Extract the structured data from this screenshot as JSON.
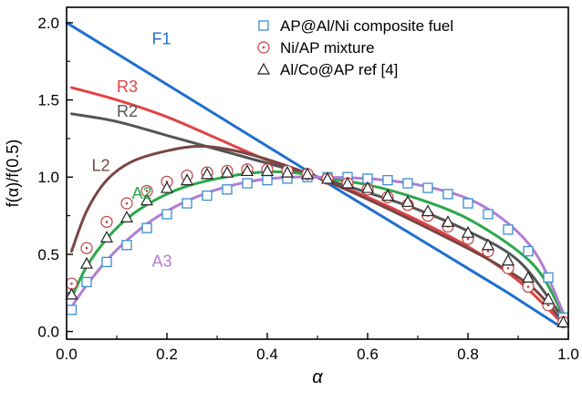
{
  "chart_data": {
    "type": "line",
    "xlabel": "α",
    "ylabel": "f(α)/f(0.5)",
    "xlim": [
      0,
      1
    ],
    "ylim": [
      -0.05,
      2.1
    ],
    "xticks": [
      "0.0",
      "0.2",
      "0.4",
      "0.6",
      "0.8",
      "1.0"
    ],
    "yticks": [
      "0.0",
      "0.5",
      "1.0",
      "1.5",
      "2.0"
    ],
    "grid": false,
    "legend_position": "top-right",
    "legend": [
      {
        "label": "AP@Al/Ni composite fuel",
        "marker": "square",
        "color": "#3a8fd0"
      },
      {
        "label": "Ni/AP mixture",
        "marker": "circle-dot",
        "color": "#c04040"
      },
      {
        "label": "Al/Co@AP ref [4]",
        "marker": "triangle",
        "color": "#222222"
      }
    ],
    "model_curves": [
      {
        "label": "F1",
        "color": "#1f6fd0",
        "label_x": 0.17,
        "label_y": 1.86,
        "points": [
          [
            0.0,
            2.0
          ],
          [
            0.5,
            1.0
          ],
          [
            0.88,
            0.25
          ],
          [
            0.98,
            0.04
          ]
        ]
      },
      {
        "label": "R3",
        "color": "#e04444",
        "label_x": 0.1,
        "label_y": 1.55,
        "points": [
          [
            0.01,
            1.58
          ],
          [
            0.1,
            1.5
          ],
          [
            0.2,
            1.39
          ],
          [
            0.3,
            1.25
          ],
          [
            0.4,
            1.11
          ],
          [
            0.5,
            1.0
          ],
          [
            0.6,
            0.87
          ],
          [
            0.7,
            0.72
          ],
          [
            0.8,
            0.55
          ],
          [
            0.9,
            0.33
          ],
          [
            0.98,
            0.08
          ]
        ]
      },
      {
        "label": "R2",
        "color": "#555555",
        "label_x": 0.1,
        "label_y": 1.39,
        "points": [
          [
            0.01,
            1.41
          ],
          [
            0.1,
            1.36
          ],
          [
            0.2,
            1.27
          ],
          [
            0.3,
            1.18
          ],
          [
            0.4,
            1.09
          ],
          [
            0.5,
            1.0
          ],
          [
            0.6,
            0.9
          ],
          [
            0.7,
            0.79
          ],
          [
            0.8,
            0.65
          ],
          [
            0.9,
            0.46
          ],
          [
            0.98,
            0.13
          ]
        ]
      },
      {
        "label": "L2",
        "color": "#7a4545",
        "label_x": 0.05,
        "label_y": 1.04,
        "points": [
          [
            0.01,
            0.52
          ],
          [
            0.04,
            0.78
          ],
          [
            0.08,
            0.98
          ],
          [
            0.13,
            1.1
          ],
          [
            0.2,
            1.17
          ],
          [
            0.27,
            1.2
          ],
          [
            0.35,
            1.16
          ],
          [
            0.45,
            1.06
          ],
          [
            0.55,
            0.93
          ],
          [
            0.65,
            0.78
          ],
          [
            0.75,
            0.62
          ],
          [
            0.85,
            0.45
          ],
          [
            0.93,
            0.28
          ],
          [
            0.99,
            0.06
          ]
        ]
      },
      {
        "label": "A2",
        "color": "#2ba84a",
        "label_x": 0.13,
        "label_y": 0.86,
        "points": [
          [
            0.01,
            0.22
          ],
          [
            0.04,
            0.42
          ],
          [
            0.08,
            0.6
          ],
          [
            0.12,
            0.73
          ],
          [
            0.17,
            0.84
          ],
          [
            0.23,
            0.93
          ],
          [
            0.3,
            0.99
          ],
          [
            0.38,
            1.03
          ],
          [
            0.45,
            1.03
          ],
          [
            0.5,
            1.0
          ],
          [
            0.6,
            0.95
          ],
          [
            0.7,
            0.86
          ],
          [
            0.8,
            0.73
          ],
          [
            0.9,
            0.52
          ],
          [
            0.95,
            0.35
          ],
          [
            0.99,
            0.1
          ]
        ]
      },
      {
        "label": "A3",
        "color": "#b27dd6",
        "label_x": 0.17,
        "label_y": 0.42,
        "points": [
          [
            0.01,
            0.16
          ],
          [
            0.04,
            0.3
          ],
          [
            0.08,
            0.46
          ],
          [
            0.12,
            0.59
          ],
          [
            0.17,
            0.72
          ],
          [
            0.23,
            0.83
          ],
          [
            0.3,
            0.92
          ],
          [
            0.38,
            0.98
          ],
          [
            0.45,
            1.0
          ],
          [
            0.5,
            1.0
          ],
          [
            0.6,
            0.99
          ],
          [
            0.7,
            0.95
          ],
          [
            0.8,
            0.86
          ],
          [
            0.88,
            0.7
          ],
          [
            0.94,
            0.48
          ],
          [
            0.99,
            0.12
          ]
        ]
      }
    ],
    "series": [
      {
        "name": "AP@Al/Ni composite fuel",
        "marker": "square",
        "color": "#3a8fd0",
        "x": [
          0.01,
          0.04,
          0.08,
          0.12,
          0.16,
          0.2,
          0.24,
          0.28,
          0.32,
          0.36,
          0.4,
          0.44,
          0.48,
          0.52,
          0.56,
          0.6,
          0.64,
          0.68,
          0.72,
          0.76,
          0.8,
          0.84,
          0.88,
          0.92,
          0.96,
          0.99
        ],
        "y": [
          0.14,
          0.32,
          0.45,
          0.56,
          0.67,
          0.76,
          0.83,
          0.88,
          0.92,
          0.96,
          0.98,
          0.99,
          1.0,
          1.0,
          1.0,
          0.99,
          0.98,
          0.96,
          0.93,
          0.89,
          0.83,
          0.76,
          0.66,
          0.52,
          0.35,
          0.09
        ]
      },
      {
        "name": "Ni/AP mixture",
        "marker": "circle-dot",
        "color": "#c04040",
        "x": [
          0.01,
          0.04,
          0.08,
          0.12,
          0.16,
          0.2,
          0.24,
          0.28,
          0.32,
          0.36,
          0.4,
          0.44,
          0.48,
          0.52,
          0.56,
          0.6,
          0.64,
          0.68,
          0.72,
          0.76,
          0.8,
          0.84,
          0.88,
          0.92,
          0.96,
          0.99
        ],
        "y": [
          0.31,
          0.54,
          0.71,
          0.83,
          0.91,
          0.97,
          1.01,
          1.03,
          1.04,
          1.05,
          1.05,
          1.04,
          1.02,
          0.99,
          0.96,
          0.92,
          0.87,
          0.82,
          0.75,
          0.68,
          0.6,
          0.52,
          0.41,
          0.29,
          0.17,
          0.06
        ]
      },
      {
        "name": "Al/Co@AP ref [4]",
        "marker": "triangle",
        "color": "#222222",
        "x": [
          0.01,
          0.04,
          0.08,
          0.12,
          0.16,
          0.2,
          0.24,
          0.28,
          0.32,
          0.36,
          0.4,
          0.44,
          0.48,
          0.52,
          0.56,
          0.6,
          0.64,
          0.68,
          0.72,
          0.76,
          0.8,
          0.84,
          0.88,
          0.92,
          0.96,
          0.99
        ],
        "y": [
          0.24,
          0.44,
          0.61,
          0.74,
          0.85,
          0.93,
          0.98,
          1.02,
          1.03,
          1.04,
          1.04,
          1.03,
          1.02,
          0.99,
          0.96,
          0.93,
          0.88,
          0.84,
          0.78,
          0.71,
          0.64,
          0.56,
          0.46,
          0.35,
          0.21,
          0.06
        ]
      }
    ]
  }
}
